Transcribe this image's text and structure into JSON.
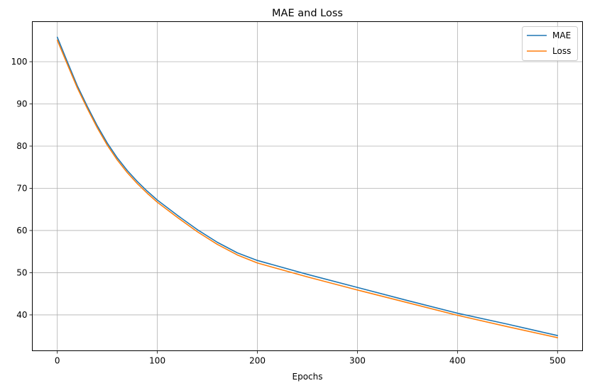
{
  "chart_data": {
    "type": "line",
    "title": "MAE and Loss",
    "xlabel": "Epochs",
    "ylabel": "",
    "xlim": [
      -25,
      525
    ],
    "ylim": [
      31.5,
      109.5
    ],
    "xticks": [
      0,
      100,
      200,
      300,
      400,
      500
    ],
    "yticks": [
      40,
      50,
      60,
      70,
      80,
      90,
      100
    ],
    "grid": true,
    "legend": "top-right",
    "series": [
      {
        "name": "MAE",
        "color": "#1f77b4",
        "x": [
          0,
          10,
          20,
          30,
          40,
          50,
          60,
          70,
          80,
          90,
          100,
          120,
          140,
          160,
          180,
          200,
          250,
          300,
          350,
          400,
          450,
          500
        ],
        "y": [
          105.8,
          100.0,
          94.3,
          89.4,
          84.8,
          80.7,
          77.2,
          74.2,
          71.6,
          69.3,
          67.2,
          63.6,
          60.2,
          57.2,
          54.7,
          52.9,
          49.6,
          46.5,
          43.4,
          40.4,
          37.8,
          35.1
        ]
      },
      {
        "name": "Loss",
        "color": "#ff7f0e",
        "x": [
          0,
          10,
          20,
          30,
          40,
          50,
          60,
          70,
          80,
          90,
          100,
          120,
          140,
          160,
          180,
          200,
          250,
          300,
          350,
          400,
          450,
          500
        ],
        "y": [
          105.1,
          99.4,
          93.8,
          88.9,
          84.3,
          80.2,
          76.7,
          73.7,
          71.1,
          68.8,
          66.7,
          63.1,
          59.7,
          56.7,
          54.2,
          52.3,
          49.0,
          45.9,
          42.9,
          39.9,
          37.2,
          34.6
        ]
      }
    ]
  }
}
